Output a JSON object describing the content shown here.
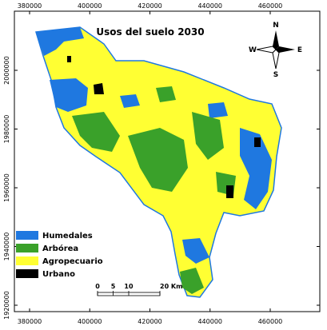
{
  "title": "Usos del suelo 2030",
  "x_labels": [
    "380000",
    "400000",
    "420000",
    "440000",
    "460000"
  ],
  "y_labels": [
    "2000000",
    "1980000",
    "1960000",
    "1940000",
    "1920000"
  ],
  "legend": [
    {
      "label": "Humedales",
      "color": "#1f78e0"
    },
    {
      "label": "Arbórea",
      "color": "#3aa12a"
    },
    {
      "label": "Agropecuario",
      "color": "#ffff33"
    },
    {
      "label": "Urbano",
      "color": "#000000"
    }
  ],
  "scale_bar": {
    "labels": [
      "0",
      "5",
      "10",
      "20 Km"
    ]
  },
  "compass": {
    "n": "N",
    "s": "S",
    "e": "E",
    "w": "W"
  }
}
